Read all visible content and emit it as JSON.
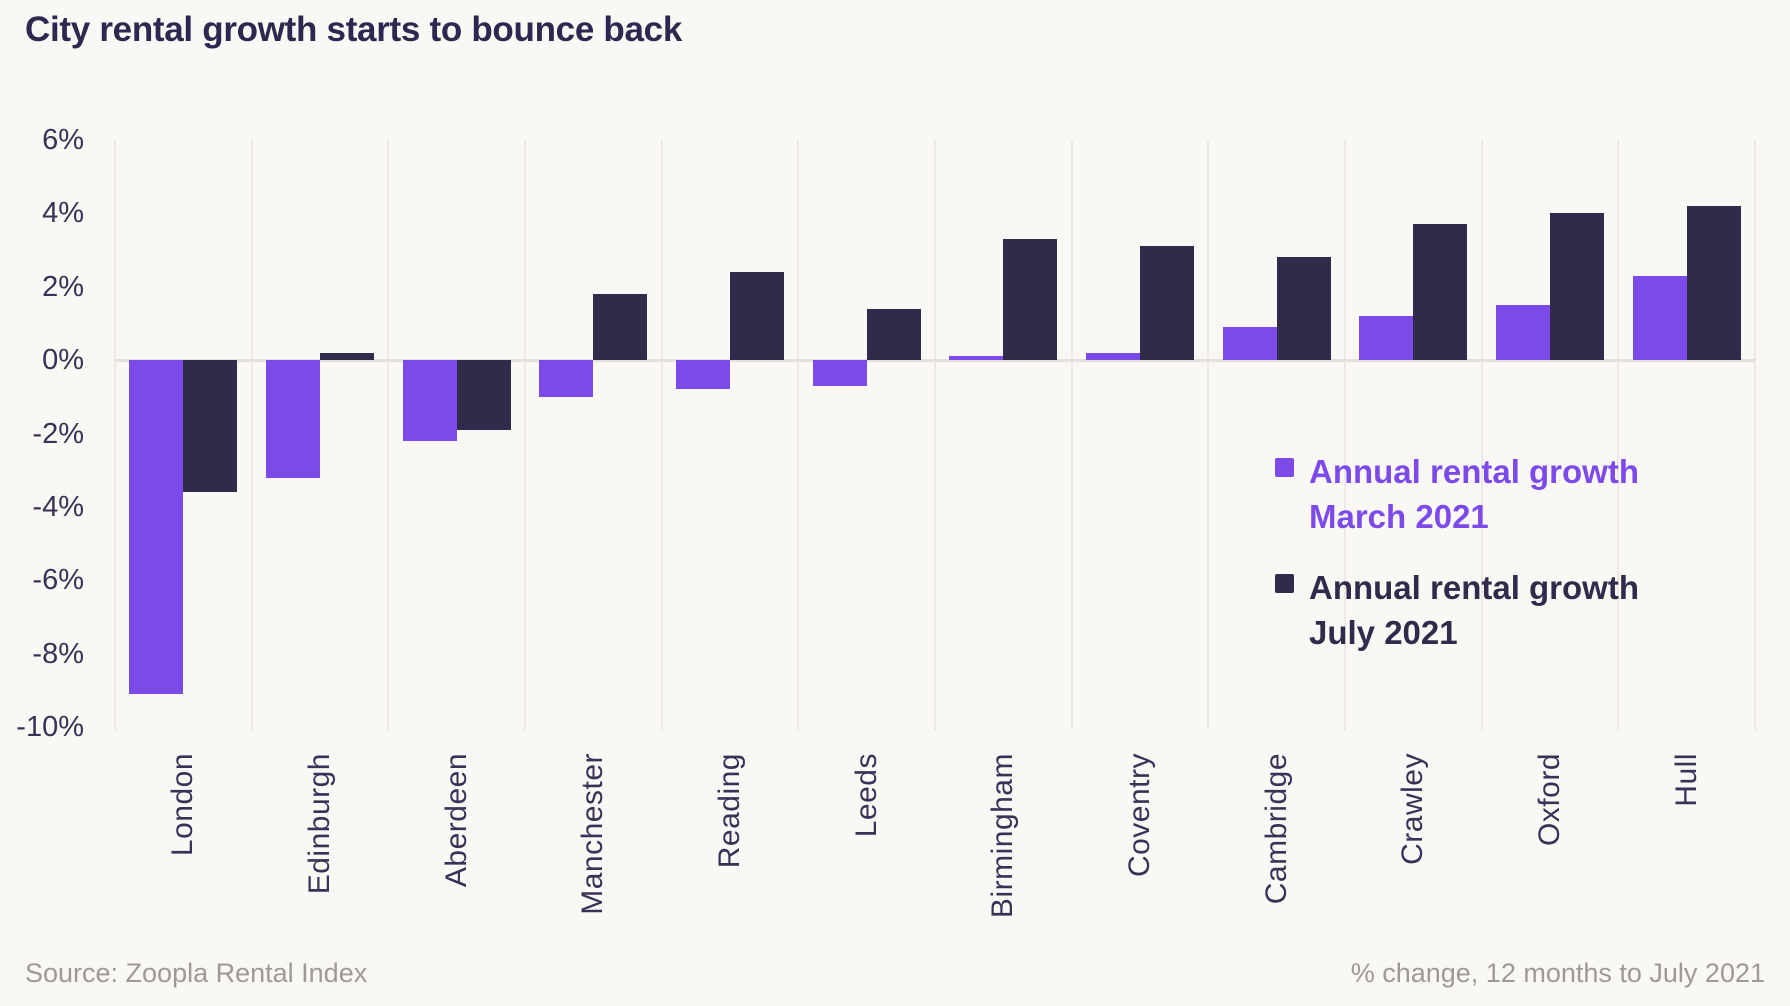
{
  "title": "City rental growth starts to bounce back",
  "footer": {
    "source": "Source: Zoopla Rental Index",
    "note": "% change, 12 months to July 2021"
  },
  "legend": {
    "march": {
      "line1": "Annual rental growth",
      "line2": "March 2021",
      "color": "#7C4AE9"
    },
    "july": {
      "line1": "Annual rental growth",
      "line2": "July 2021",
      "color": "#322A4B"
    }
  },
  "colors": {
    "background": "#FAF8F5",
    "march_purple": "#7C4AE9",
    "july_dark": "#322A4B",
    "grid": "#EDEAE6",
    "zero_line": "#E4E1DC",
    "axis_text": "#3A3157",
    "title_text": "#2E2750",
    "footer_text": "#9D9A96"
  },
  "chart_data": {
    "type": "bar",
    "title": "City rental growth starts to bounce back",
    "xlabel": "",
    "ylabel": "% change, 12 months",
    "ylim": [
      -10,
      6
    ],
    "grid": "vertical-slot-lines-and-zero-line",
    "legend_position": "inside-right",
    "categories": [
      "London",
      "Edinburgh",
      "Aberdeen",
      "Manchester",
      "Reading",
      "Leeds",
      "Birmingham",
      "Coventry",
      "Cambridge",
      "Crawley",
      "Oxford",
      "Hull"
    ],
    "y_ticks": [
      {
        "label": "6%",
        "value": 6
      },
      {
        "label": "4%",
        "value": 4
      },
      {
        "label": "2%",
        "value": 2
      },
      {
        "label": "0%",
        "value": 0
      },
      {
        "label": "-2%",
        "value": -2
      },
      {
        "label": "-4%",
        "value": -4
      },
      {
        "label": "-6%",
        "value": -6
      },
      {
        "label": "-8%",
        "value": -8
      },
      {
        "label": "-10%",
        "value": -10
      }
    ],
    "series": [
      {
        "name": "Annual rental growth March 2021",
        "color": "#7C4AE9",
        "values": [
          -9.1,
          -3.2,
          -2.2,
          -1.0,
          -0.8,
          -0.7,
          0.1,
          0.2,
          0.9,
          1.2,
          1.5,
          2.3
        ]
      },
      {
        "name": "Annual rental growth July 2021",
        "color": "#322A4B",
        "values": [
          -3.6,
          0.2,
          -1.9,
          1.8,
          2.4,
          1.4,
          3.3,
          3.1,
          2.8,
          3.7,
          4.0,
          4.2
        ]
      }
    ]
  }
}
